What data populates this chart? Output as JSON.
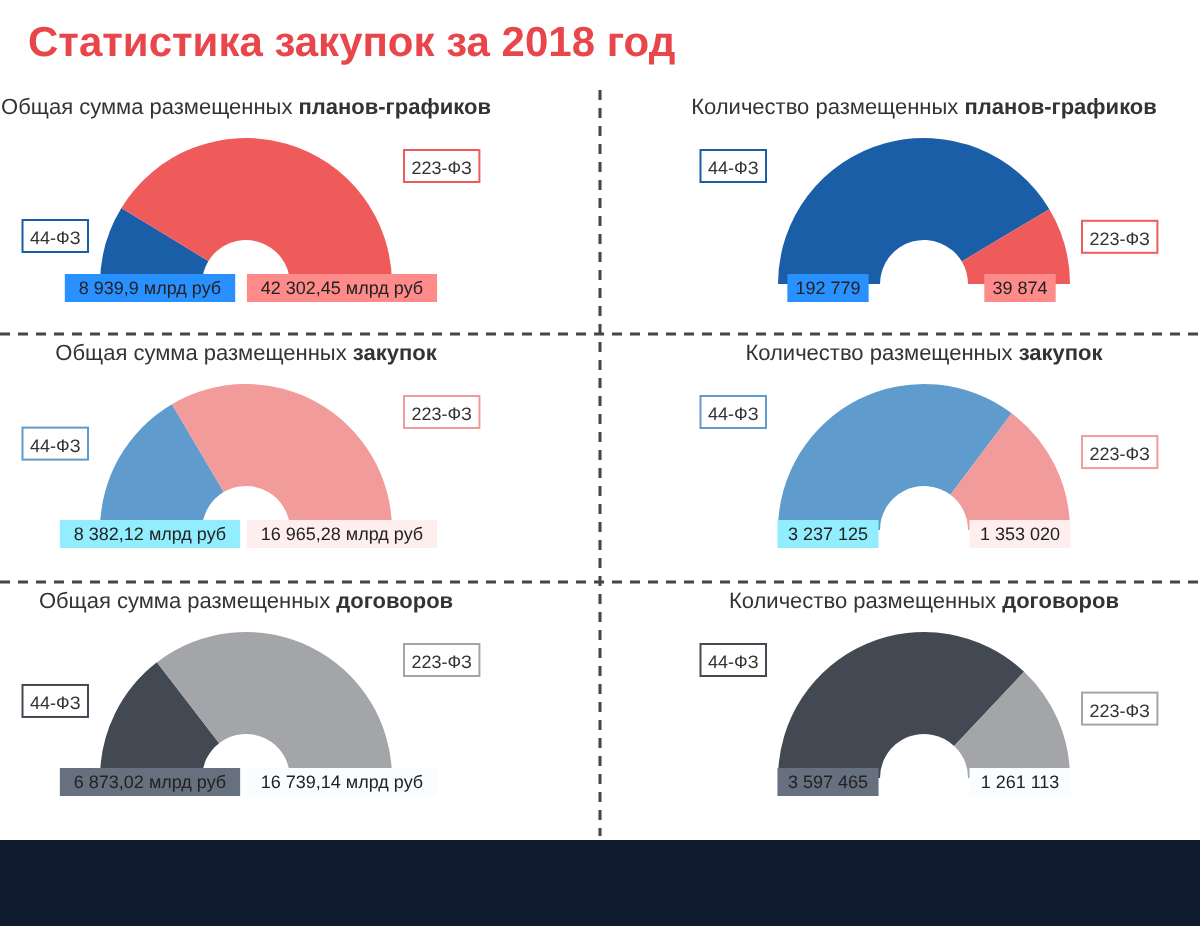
{
  "chart_data": [
    {
      "type": "other",
      "title": "Статистика закупок за 2018 год"
    },
    {
      "type": "donut",
      "title": "Общая сумма размещенных планов-графиков",
      "categories": [
        "44-ФЗ",
        "223-ФЗ"
      ],
      "values": [
        8939.9,
        42302.45
      ],
      "value_labels": [
        "8 939,9 млрд руб",
        "42 302,45 млрд руб"
      ],
      "colors": [
        "#1b5ea8",
        "#ef5a5a"
      ]
    },
    {
      "type": "donut",
      "title": "Количество размещенных планов-графиков",
      "categories": [
        "44-ФЗ",
        "223-ФЗ"
      ],
      "values": [
        192779,
        39874
      ],
      "value_labels": [
        "192 779",
        "39 874"
      ],
      "colors": [
        "#1b5ea8",
        "#ef5a5a"
      ]
    },
    {
      "type": "donut",
      "title": "Общая сумма размещенных закупок",
      "categories": [
        "44-ФЗ",
        "223-ФЗ"
      ],
      "values": [
        8382.12,
        16965.28
      ],
      "value_labels": [
        "8 382,12 млрд руб",
        "16 965,28 млрд руб"
      ],
      "colors": [
        "#5f9bcc",
        "#f29b9b"
      ]
    },
    {
      "type": "donut",
      "title": "Количество размещенных закупок",
      "categories": [
        "44-ФЗ",
        "223-ФЗ"
      ],
      "values": [
        3237125,
        1353020
      ],
      "value_labels": [
        "3 237 125",
        "1 353 020"
      ],
      "colors": [
        "#5f9bcc",
        "#f29b9b"
      ]
    },
    {
      "type": "donut",
      "title": "Общая сумма размещенных договоров",
      "categories": [
        "44-ФЗ",
        "223-ФЗ"
      ],
      "values": [
        6873.02,
        16739.14
      ],
      "value_labels": [
        "6 873,02 млрд руб",
        "16 739,14 млрд руб"
      ],
      "colors": [
        "#434952",
        "#a3a5a8"
      ]
    },
    {
      "type": "donut",
      "title": "Количество размещенных договоров",
      "categories": [
        "44-ФЗ",
        "223-ФЗ"
      ],
      "values": [
        3597465,
        1261113
      ],
      "value_labels": [
        "3 597 465",
        "1 261 113"
      ],
      "colors": [
        "#434952",
        "#a3a5a8"
      ]
    }
  ]
}
